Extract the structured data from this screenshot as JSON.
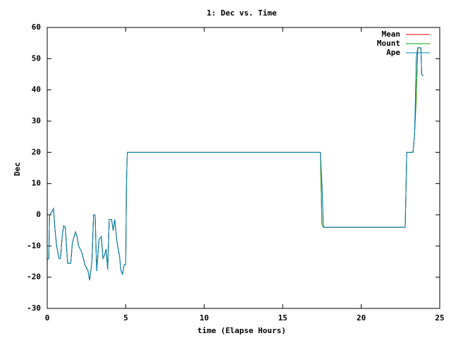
{
  "chart_data": {
    "type": "line",
    "title": "1: Dec vs. Time",
    "xlabel": "time (Elapse Hours)",
    "ylabel": "Dec",
    "x": [
      0,
      0.1,
      0.15,
      0.3,
      0.4,
      0.5,
      0.6,
      0.75,
      0.85,
      0.95,
      1.05,
      1.15,
      1.3,
      1.5,
      1.6,
      1.8,
      1.9,
      2.0,
      2.2,
      2.4,
      2.6,
      2.7,
      2.85,
      2.95,
      3.05,
      3.15,
      3.3,
      3.45,
      3.55,
      3.65,
      3.75,
      3.85,
      3.95,
      4.1,
      4.2,
      4.3,
      4.45,
      4.6,
      4.7,
      4.8,
      4.9,
      5.0,
      5.05,
      5.1,
      17.4,
      17.5,
      17.6,
      22.8,
      22.9,
      23.3,
      23.4,
      23.5,
      23.6,
      23.8,
      23.85,
      23.95
    ],
    "series": [
      {
        "name": "Mean",
        "color": "#ff0000",
        "values": [
          -14.5,
          -14,
          0,
          1,
          2,
          -5,
          -10,
          -14,
          -14,
          -7,
          -3.5,
          -4,
          -15.5,
          -15.5,
          -9,
          -5.5,
          -7,
          -10,
          -12,
          -16,
          -18,
          -21,
          -15,
          0,
          0,
          -18,
          -8,
          -7,
          -14,
          -13,
          -11,
          -17.5,
          -1.5,
          -1.5,
          -5,
          -1.5,
          -9,
          -13,
          -18,
          -19,
          -16,
          -16,
          11,
          20,
          20,
          -3,
          -4,
          -4,
          20,
          20,
          26,
          37,
          53.5,
          53.5,
          45,
          44.5
        ]
      },
      {
        "name": "Mount",
        "color": "#00a000",
        "values": [
          -14.5,
          -14,
          0,
          1,
          2,
          -5,
          -10,
          -14,
          -14,
          -7,
          -3.5,
          -4,
          -15.5,
          -15.5,
          -9,
          -5.5,
          -7,
          -10,
          -12,
          -16,
          -18,
          -21,
          -15,
          0,
          0,
          -18,
          -8,
          -7,
          -14,
          -13,
          -11,
          -17.5,
          -1.5,
          -1.5,
          -5,
          -1.5,
          -9,
          -13,
          -18,
          -19,
          -16,
          -16,
          11,
          20,
          20,
          -3,
          -4,
          -4,
          20,
          20,
          26,
          37,
          53.5,
          53.5,
          45,
          44.5
        ]
      },
      {
        "name": "Ape",
        "color": "#0080c0",
        "values": [
          -14.5,
          -14,
          0,
          1,
          2,
          -5,
          -10,
          -14,
          -14,
          -7,
          -3.5,
          -4,
          -15.5,
          -15.5,
          -9,
          -5.5,
          -7,
          -10,
          -12,
          -16,
          -18,
          -21,
          -15,
          0,
          0,
          -18,
          -8,
          -7,
          -14,
          -13,
          -11,
          -17.5,
          -1.5,
          -1.5,
          -5,
          -1.5,
          -9,
          -13,
          -18,
          -19,
          -16,
          -16,
          11,
          20,
          20,
          10,
          -4,
          -4,
          20,
          20,
          26,
          50,
          53.5,
          53.5,
          45,
          44.5
        ]
      }
    ],
    "xlim": [
      0,
      25
    ],
    "xticks": [
      0,
      5,
      10,
      15,
      20,
      25
    ],
    "ylim": [
      -30,
      60
    ],
    "yticks": [
      -30,
      -20,
      -10,
      0,
      10,
      20,
      30,
      40,
      50,
      60
    ],
    "grid": false,
    "legend": "upper right"
  }
}
